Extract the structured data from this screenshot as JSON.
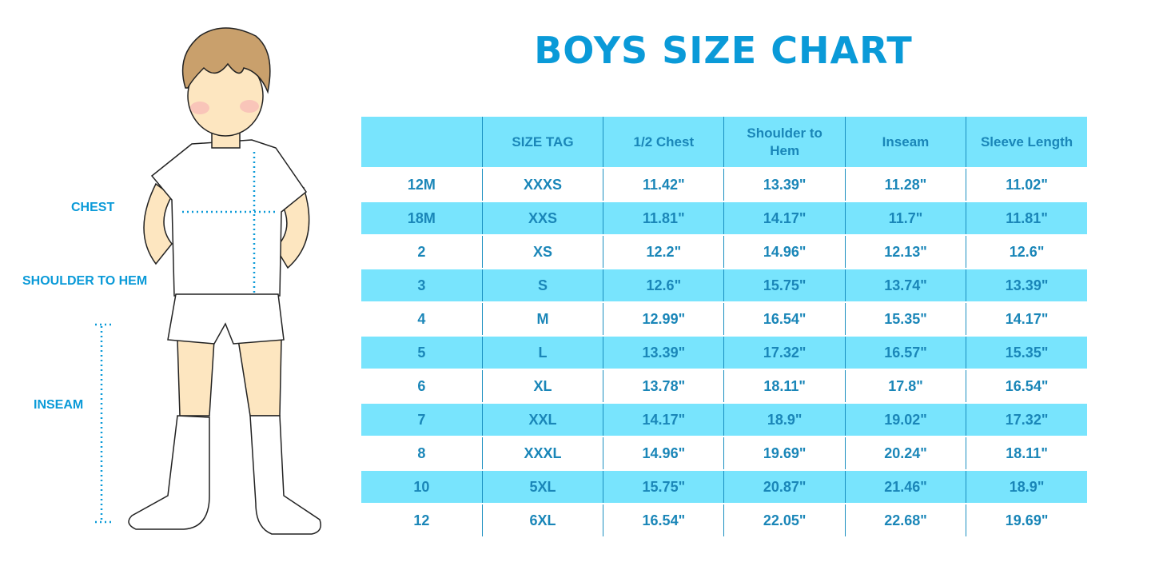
{
  "title": "BOYS SIZE CHART",
  "labels": {
    "chest": "CHEST",
    "shoulder_to_hem": "SHOULDER TO HEM",
    "inseam": "INSEAM"
  },
  "colors": {
    "title": "#0a9ad8",
    "stripe": "#78e4fd",
    "text": "#1a86b8"
  },
  "table": {
    "headers": [
      "",
      "SIZE TAG",
      "1/2 Chest",
      "Shoulder to Hem",
      "Inseam",
      "Sleeve Length"
    ],
    "rows": [
      [
        "12M",
        "XXXS",
        "11.42\"",
        "13.39\"",
        "11.28\"",
        "11.02\""
      ],
      [
        "18M",
        "XXS",
        "11.81\"",
        "14.17\"",
        "11.7\"",
        "11.81\""
      ],
      [
        "2",
        "XS",
        "12.2\"",
        "14.96\"",
        "12.13\"",
        "12.6\""
      ],
      [
        "3",
        "S",
        "12.6\"",
        "15.75\"",
        "13.74\"",
        "13.39\""
      ],
      [
        "4",
        "M",
        "12.99\"",
        "16.54\"",
        "15.35\"",
        "14.17\""
      ],
      [
        "5",
        "L",
        "13.39\"",
        "17.32\"",
        "16.57\"",
        "15.35\""
      ],
      [
        "6",
        "XL",
        "13.78\"",
        "18.11\"",
        "17.8\"",
        "16.54\""
      ],
      [
        "7",
        "XXL",
        "14.17\"",
        "18.9\"",
        "19.02\"",
        "17.32\""
      ],
      [
        "8",
        "XXXL",
        "14.96\"",
        "19.69\"",
        "20.24\"",
        "18.11\""
      ],
      [
        "10",
        "5XL",
        "15.75\"",
        "20.87\"",
        "21.46\"",
        "18.9\""
      ],
      [
        "12",
        "6XL",
        "16.54\"",
        "22.05\"",
        "22.68\"",
        "19.69\""
      ]
    ]
  }
}
